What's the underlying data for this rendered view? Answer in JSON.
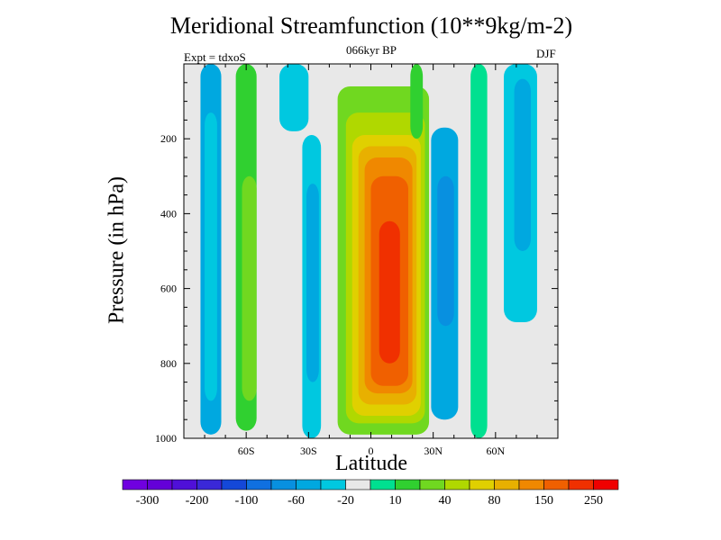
{
  "chart_data": {
    "type": "heatmap",
    "title": "Meridional Streamfunction (10**9kg/m-2)",
    "subtitle_center": "066kyr BP",
    "subtitle_left": "Expt = tdxoS",
    "subtitle_right": "DJF",
    "xlabel": "Latitude",
    "ylabel": "Pressure (in hPa)",
    "xlim": [
      -90,
      90
    ],
    "ylim": [
      1000,
      0
    ],
    "x_ticks": [
      {
        "value": -60,
        "label": "60S"
      },
      {
        "value": -30,
        "label": "30S"
      },
      {
        "value": 0,
        "label": "0"
      },
      {
        "value": 30,
        "label": "30N"
      },
      {
        "value": 60,
        "label": "60N"
      }
    ],
    "y_ticks": [
      {
        "value": 200,
        "label": "200"
      },
      {
        "value": 400,
        "label": "400"
      },
      {
        "value": 600,
        "label": "600"
      },
      {
        "value": 800,
        "label": "800"
      },
      {
        "value": 1000,
        "label": "1000"
      }
    ],
    "colorbar": {
      "labels": [
        "-300",
        "-200",
        "-100",
        "-60",
        "-20",
        "10",
        "40",
        "80",
        "150",
        "250"
      ],
      "colors": [
        "#7000e0",
        "#6400d8",
        "#4f10d8",
        "#3a28d8",
        "#1448d8",
        "#1070e0",
        "#0890e0",
        "#00a8e0",
        "#00c8e0",
        "#e8e8e8",
        "#00e090",
        "#30d030",
        "#70d820",
        "#b0d800",
        "#e0d000",
        "#e8b000",
        "#f08800",
        "#f06000",
        "#f03000",
        "#f00000"
      ]
    },
    "cells": [
      {
        "lat": [
          -82,
          -72
        ],
        "p": [
          0,
          990
        ],
        "level": 7
      },
      {
        "lat": [
          -80,
          -74
        ],
        "p": [
          130,
          900
        ],
        "level": 8
      },
      {
        "lat": [
          -65,
          -55
        ],
        "p": [
          0,
          980
        ],
        "level": 11
      },
      {
        "lat": [
          -62,
          -55
        ],
        "p": [
          300,
          900
        ],
        "level": 12
      },
      {
        "lat": [
          -44,
          -30
        ],
        "p": [
          0,
          180
        ],
        "level": 8
      },
      {
        "lat": [
          -33,
          -24
        ],
        "p": [
          190,
          1000
        ],
        "level": 8
      },
      {
        "lat": [
          -31,
          -25
        ],
        "p": [
          320,
          850
        ],
        "level": 7
      },
      {
        "lat": [
          -16,
          28
        ],
        "p": [
          60,
          990
        ],
        "level": 12
      },
      {
        "lat": [
          -12,
          26
        ],
        "p": [
          130,
          960
        ],
        "level": 13
      },
      {
        "lat": [
          -9,
          24
        ],
        "p": [
          190,
          940
        ],
        "level": 14
      },
      {
        "lat": [
          -6,
          22
        ],
        "p": [
          220,
          910
        ],
        "level": 15
      },
      {
        "lat": [
          -3,
          20
        ],
        "p": [
          250,
          880
        ],
        "level": 16
      },
      {
        "lat": [
          0,
          18
        ],
        "p": [
          300,
          860
        ],
        "level": 17
      },
      {
        "lat": [
          4,
          14
        ],
        "p": [
          420,
          800
        ],
        "level": 18
      },
      {
        "lat": [
          19,
          25
        ],
        "p": [
          0,
          200
        ],
        "level": 11
      },
      {
        "lat": [
          29,
          42
        ],
        "p": [
          170,
          950
        ],
        "level": 7
      },
      {
        "lat": [
          32,
          40
        ],
        "p": [
          300,
          700
        ],
        "level": 6
      },
      {
        "lat": [
          48,
          56
        ],
        "p": [
          0,
          1000
        ],
        "level": 10
      },
      {
        "lat": [
          64,
          80
        ],
        "p": [
          0,
          690
        ],
        "level": 8
      },
      {
        "lat": [
          69,
          77
        ],
        "p": [
          40,
          500
        ],
        "level": 7
      }
    ]
  }
}
